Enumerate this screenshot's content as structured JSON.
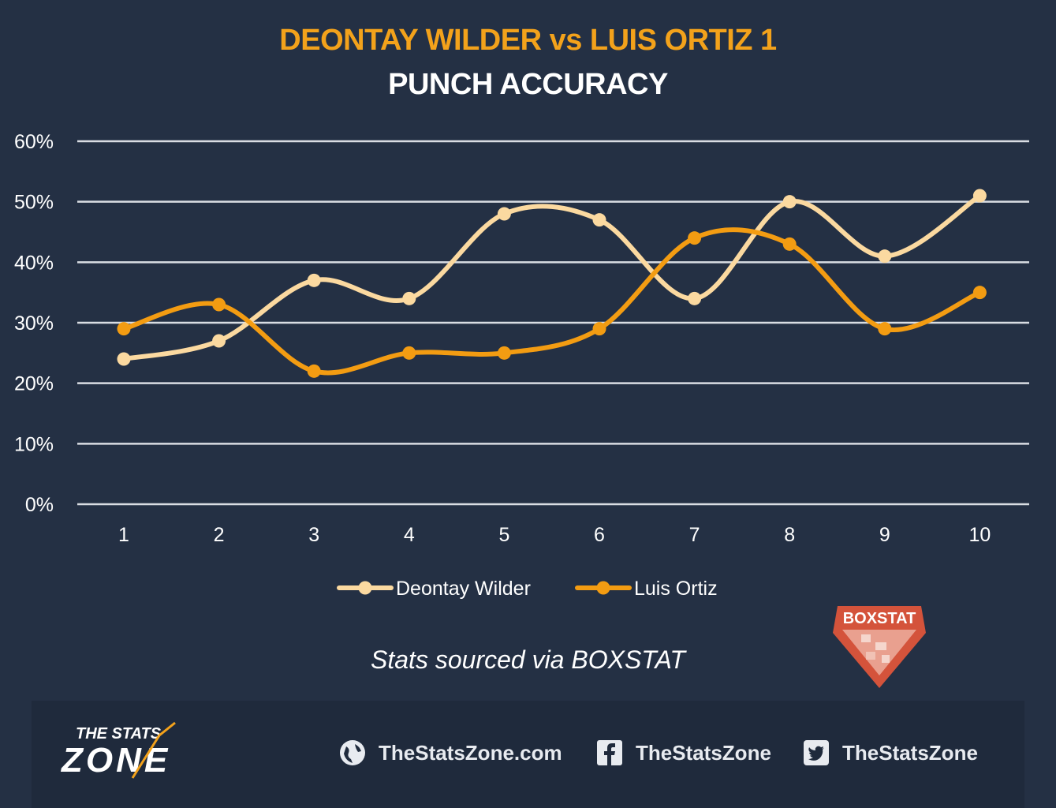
{
  "header": {
    "title": "DEONTAY WILDER vs LUIS ORTIZ 1",
    "subtitle": "PUNCH ACCURACY"
  },
  "chart_data": {
    "type": "line",
    "title": "DEONTAY WILDER vs LUIS ORTIZ 1",
    "subtitle": "PUNCH ACCURACY",
    "categories": [
      "1",
      "2",
      "3",
      "4",
      "5",
      "6",
      "7",
      "8",
      "9",
      "10"
    ],
    "ylim": [
      0,
      60
    ],
    "yticks": [
      "0%",
      "10%",
      "20%",
      "30%",
      "40%",
      "50%",
      "60%"
    ],
    "ytick_values": [
      0,
      10,
      20,
      30,
      40,
      50,
      60
    ],
    "grid": true,
    "smooth": true,
    "legend_position": "bottom",
    "series": [
      {
        "name": "Deontay Wilder",
        "color": "#fbd9a0",
        "values": [
          24,
          27,
          37,
          34,
          48,
          47,
          34,
          50,
          41,
          51
        ]
      },
      {
        "name": "Luis Ortiz",
        "color": "#f39c12",
        "values": [
          29,
          33,
          22,
          25,
          25,
          29,
          44,
          43,
          29,
          35
        ]
      }
    ]
  },
  "source_note": "Stats sourced via BOXSTAT",
  "badge": {
    "label": "BOXSTAT",
    "color": "#d4533b"
  },
  "footer": {
    "logo_top": "THE STATS",
    "logo_bottom": "ZONE",
    "links": [
      {
        "icon": "globe-icon",
        "label": "TheStatsZone.com"
      },
      {
        "icon": "facebook-icon",
        "label": "TheStatsZone"
      },
      {
        "icon": "twitter-icon",
        "label": "TheStatsZone"
      }
    ]
  }
}
